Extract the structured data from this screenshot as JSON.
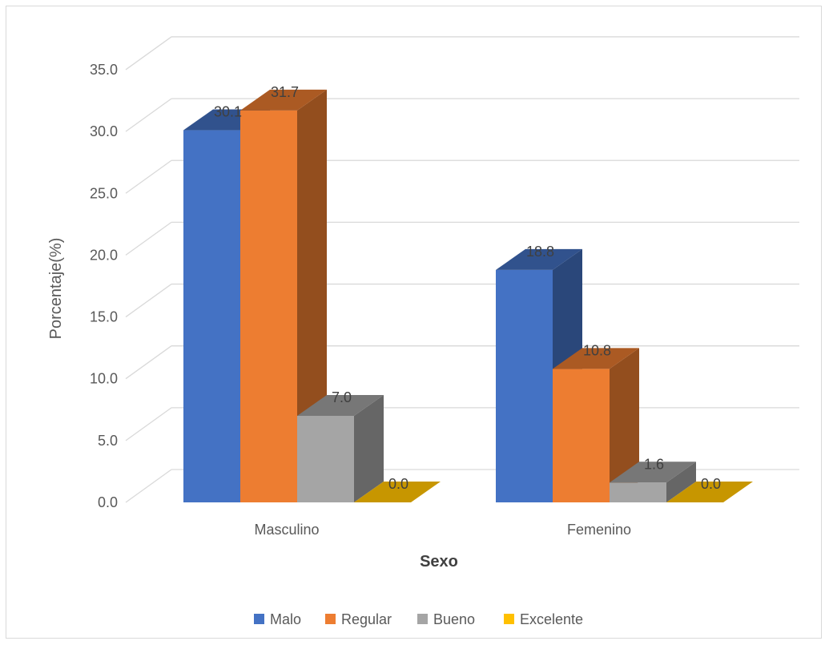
{
  "chart_data": {
    "type": "bar",
    "title": "",
    "xlabel": "Sexo",
    "ylabel": "Porcentaje(%)",
    "ylim": [
      0,
      35
    ],
    "yticks": [
      "0.0",
      "5.0",
      "10.0",
      "15.0",
      "20.0",
      "25.0",
      "30.0",
      "35.0"
    ],
    "categories": [
      "Masculino",
      "Femenino"
    ],
    "series": [
      {
        "name": "Malo",
        "values": [
          30.1,
          18.8
        ],
        "labels": [
          "30.1",
          "18.8"
        ],
        "color": "#4472C4"
      },
      {
        "name": "Regular",
        "values": [
          31.7,
          10.8
        ],
        "labels": [
          "31.7",
          "10.8"
        ],
        "color": "#ED7D31"
      },
      {
        "name": "Bueno",
        "values": [
          7.0,
          1.6
        ],
        "labels": [
          "7.0",
          "1.6"
        ],
        "color": "#A5A5A5"
      },
      {
        "name": "Excelente",
        "values": [
          0.0,
          0.0
        ],
        "labels": [
          "0.0",
          "0.0"
        ],
        "color": "#FFC000"
      }
    ],
    "grid": true,
    "style": "3d-clustered-column",
    "legend_position": "bottom"
  }
}
